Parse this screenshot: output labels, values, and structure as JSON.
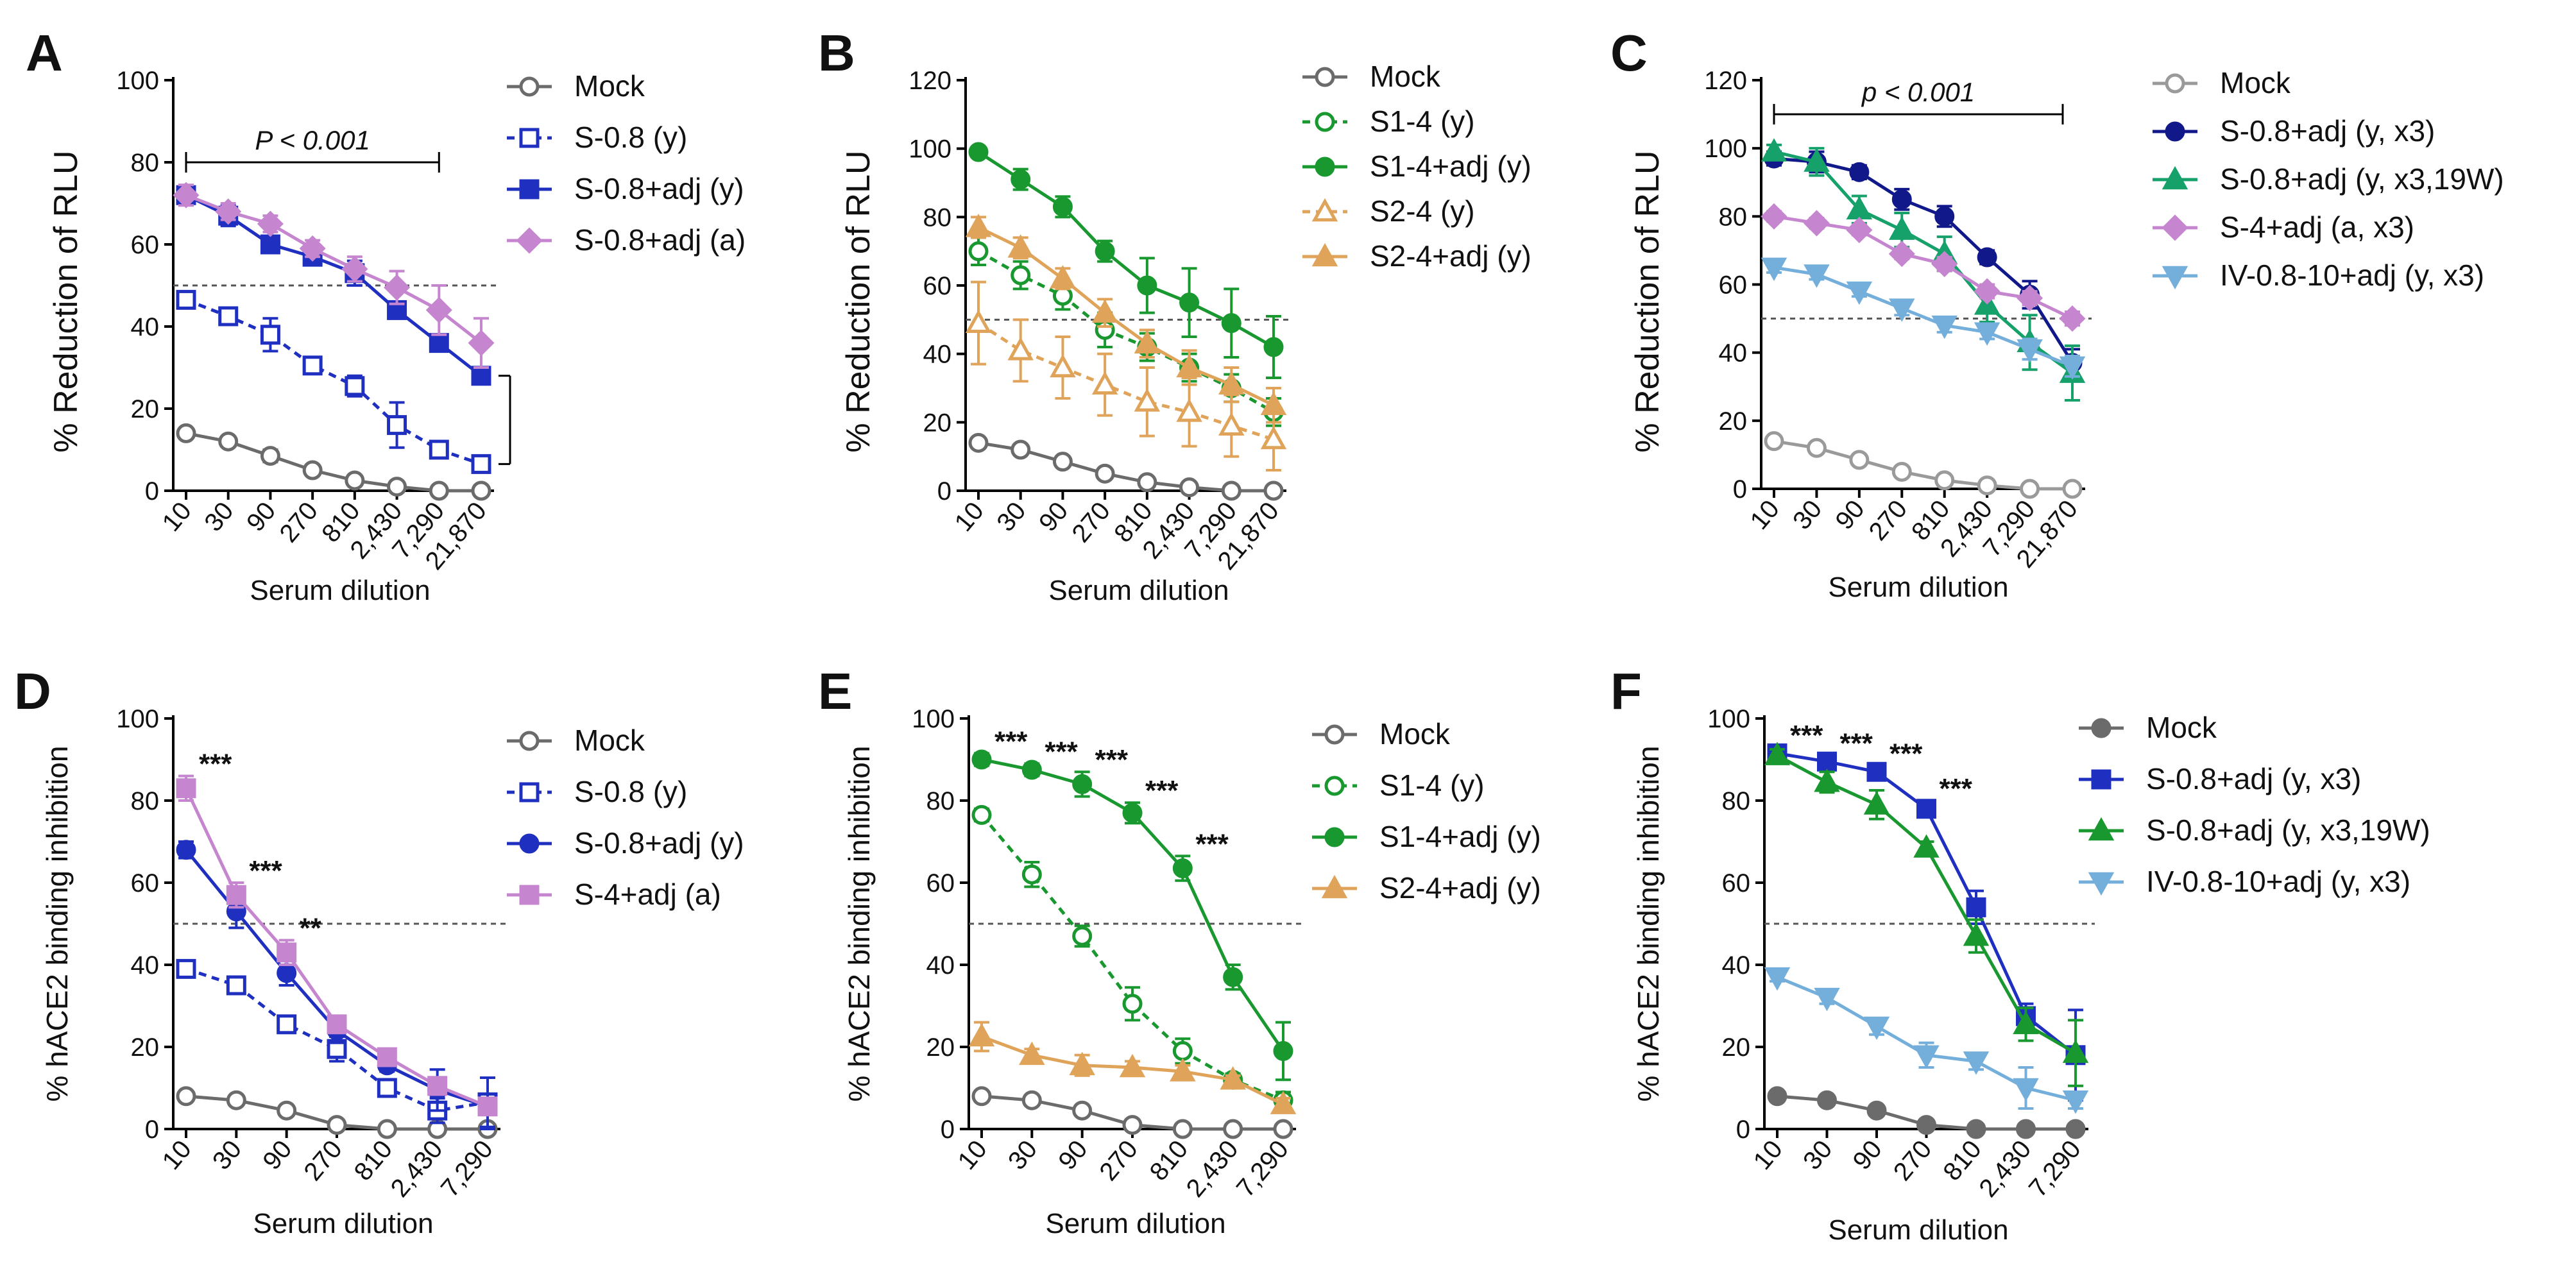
{
  "figure": {
    "title": ""
  },
  "colors": {
    "mock": "#6b6b6b",
    "mock_light": "#9a9a9a",
    "blue": "#1f2fbf",
    "navy": "#10188a",
    "purple": "#c586cf",
    "green": "#18982f",
    "teal": "#16a06a",
    "orange": "#e0a35a",
    "lightblue": "#74aedb"
  },
  "chart_data": [
    {
      "id": "A",
      "type": "line",
      "ylabel": "% Reduction of RLU",
      "xlabel": "Serum dilution",
      "categories": [
        "10",
        "30",
        "90",
        "270",
        "810",
        "2,430",
        "7,290",
        "21,870"
      ],
      "ylim": [
        0,
        100
      ],
      "yticks": [
        0,
        20,
        40,
        60,
        80,
        100
      ],
      "reference_line": 50,
      "legend_position": "right",
      "series": [
        {
          "name": "Mock",
          "values": [
            14,
            12,
            8.5,
            5,
            2.5,
            1,
            0,
            0
          ],
          "errors": [
            0.8,
            0.8,
            1.5,
            0.8,
            0.5,
            0.5,
            0.3,
            0.3
          ],
          "color": "#6b6b6b",
          "marker": "circle",
          "fill": "open",
          "dash": false
        },
        {
          "name": "S-0.8 (y)",
          "values": [
            46.5,
            42.5,
            38,
            30.5,
            25.5,
            16,
            10,
            6.5
          ],
          "errors": [
            2,
            1.5,
            4,
            2,
            2.5,
            5.5,
            2,
            1.5
          ],
          "color": "#1f2fbf",
          "marker": "square",
          "fill": "open",
          "dash": true
        },
        {
          "name": "S-0.8+adj (y)",
          "values": [
            72,
            67,
            60,
            57,
            53,
            44,
            36,
            28
          ],
          "errors": [
            2,
            2.5,
            2,
            2,
            3,
            2,
            2,
            1.5
          ],
          "color": "#1f2fbf",
          "marker": "square",
          "fill": "filled",
          "dash": false
        },
        {
          "name": "S-0.8+adj (a)",
          "values": [
            72,
            68,
            65,
            59,
            54,
            49.5,
            44,
            36
          ],
          "errors": [
            2.5,
            2,
            2,
            2,
            3,
            4,
            6,
            6
          ],
          "color": "#c586cf",
          "marker": "diamond",
          "fill": "filled",
          "dash": false
        }
      ],
      "annotations": [
        {
          "text": "P < 0.001",
          "kind": "bracket-top"
        },
        {
          "text": "",
          "kind": "bracket-right"
        }
      ]
    },
    {
      "id": "B",
      "type": "line",
      "ylabel": "% Reduction of RLU",
      "xlabel": "Serum dilution",
      "categories": [
        "10",
        "30",
        "90",
        "270",
        "810",
        "2,430",
        "7,290",
        "21,870"
      ],
      "ylim": [
        0,
        120
      ],
      "yticks": [
        0,
        20,
        40,
        60,
        80,
        100,
        120
      ],
      "reference_line": 50,
      "legend_position": "right",
      "series": [
        {
          "name": "Mock",
          "values": [
            14,
            12,
            8.5,
            5,
            2.5,
            1,
            0,
            0
          ],
          "errors": [
            0.8,
            0.8,
            1.5,
            0.8,
            0.5,
            0.5,
            0.3,
            0.3
          ],
          "color": "#6b6b6b",
          "marker": "circle",
          "fill": "open",
          "dash": false
        },
        {
          "name": "S1-4 (y)",
          "values": [
            70,
            63,
            57,
            47,
            42,
            36,
            30,
            23
          ],
          "errors": [
            4,
            4,
            4,
            5,
            4,
            4,
            4,
            4
          ],
          "color": "#18982f",
          "marker": "circle",
          "fill": "open",
          "dash": true
        },
        {
          "name": "S1-4+adj (y)",
          "values": [
            99,
            91,
            83,
            70,
            60,
            55,
            49,
            42
          ],
          "errors": [
            1,
            3,
            3,
            3,
            8,
            10,
            10,
            9
          ],
          "color": "#18982f",
          "marker": "circle",
          "fill": "filled",
          "dash": false
        },
        {
          "name": "S2-4 (y)",
          "values": [
            49,
            41,
            36,
            31,
            26,
            23,
            19,
            15
          ],
          "errors": [
            12,
            9,
            9,
            9,
            10,
            10,
            9,
            9
          ],
          "color": "#e0a35a",
          "marker": "triangle",
          "fill": "open",
          "dash": true
        },
        {
          "name": "S2-4+adj (y)",
          "values": [
            77,
            71,
            62,
            52,
            43,
            36,
            31,
            25
          ],
          "errors": [
            3,
            3,
            3,
            4,
            4,
            5,
            5,
            5
          ],
          "color": "#e0a35a",
          "marker": "triangle",
          "fill": "filled",
          "dash": false
        }
      ],
      "annotations": []
    },
    {
      "id": "C",
      "type": "line",
      "ylabel": "% Reduction of RLU",
      "xlabel": "Serum dilution",
      "categories": [
        "10",
        "30",
        "90",
        "270",
        "810",
        "2,430",
        "7,290",
        "21,870"
      ],
      "ylim": [
        0,
        120
      ],
      "yticks": [
        0,
        20,
        40,
        60,
        80,
        100,
        120
      ],
      "reference_line": 50,
      "legend_position": "right",
      "series": [
        {
          "name": "Mock",
          "values": [
            14,
            12,
            8.5,
            5,
            2.5,
            1,
            0,
            0
          ],
          "errors": [
            0.8,
            0.8,
            1.5,
            0.8,
            0.5,
            0.5,
            0.3,
            0.3
          ],
          "color": "#9a9a9a",
          "marker": "circle",
          "fill": "open",
          "dash": false
        },
        {
          "name": "S-0.8+adj (y, x3)",
          "values": [
            97,
            96,
            93,
            85,
            80,
            68,
            57,
            37
          ],
          "errors": [
            2,
            3,
            2,
            3,
            3,
            2,
            4,
            4
          ],
          "color": "#10188a",
          "marker": "circle",
          "fill": "filled",
          "dash": false
        },
        {
          "name": "S-0.8+adj (y, x3,19W)",
          "values": [
            99,
            96,
            82,
            76,
            69,
            54,
            43,
            34
          ],
          "errors": [
            2,
            4,
            4,
            5,
            5,
            5,
            8,
            8
          ],
          "color": "#16a06a",
          "marker": "triangle",
          "fill": "filled",
          "dash": false
        },
        {
          "name": "S-4+adj (a, x3)",
          "values": [
            80,
            78,
            76,
            69,
            66,
            58,
            56,
            50
          ],
          "errors": [
            1.5,
            1.5,
            1.5,
            1.5,
            2,
            2,
            2,
            2
          ],
          "color": "#c586cf",
          "marker": "diamond",
          "fill": "filled",
          "dash": false
        },
        {
          "name": "IV-0.8-10+adj (y, x3)",
          "values": [
            65,
            63,
            58,
            53,
            48,
            46,
            41,
            36
          ],
          "errors": [
            1.5,
            1.5,
            1.5,
            2,
            2,
            2,
            3,
            3
          ],
          "color": "#74aedb",
          "marker": "triangle-down",
          "fill": "filled",
          "dash": false
        }
      ],
      "annotations": [
        {
          "text": "p < 0.001",
          "kind": "bracket-top"
        }
      ]
    },
    {
      "id": "D",
      "type": "line",
      "ylabel": "% hACE2 binding inhibition",
      "xlabel": "Serum dilution",
      "categories": [
        "10",
        "30",
        "90",
        "270",
        "810",
        "2,430",
        "7,290"
      ],
      "ylim": [
        0,
        100
      ],
      "yticks": [
        0,
        20,
        40,
        60,
        80,
        100
      ],
      "reference_line": 50,
      "legend_position": "right",
      "series": [
        {
          "name": "Mock",
          "values": [
            8,
            7,
            4.5,
            1,
            0,
            0,
            0
          ],
          "errors": [
            1,
            0.8,
            0.8,
            0.5,
            0.3,
            0.3,
            0.3
          ],
          "color": "#6b6b6b",
          "marker": "circle",
          "fill": "open",
          "dash": false
        },
        {
          "name": "S-0.8 (y)",
          "values": [
            39,
            35,
            25.5,
            19.5,
            10,
            4.5,
            6.5
          ],
          "errors": [
            1.5,
            1.5,
            1.5,
            3,
            1.5,
            3,
            6
          ],
          "color": "#1f2fbf",
          "marker": "square",
          "fill": "open",
          "dash": true
        },
        {
          "name": "S-0.8+adj (y)",
          "values": [
            68,
            53,
            38,
            24,
            15.5,
            9.5,
            5.5
          ],
          "errors": [
            2,
            4,
            3,
            3,
            1.5,
            5,
            7
          ],
          "color": "#1f2fbf",
          "marker": "circle",
          "fill": "filled",
          "dash": false
        },
        {
          "name": "S-4+adj (a)",
          "values": [
            83,
            57,
            43,
            25.5,
            17.5,
            10.5,
            5.5
          ],
          "errors": [
            3,
            3,
            3,
            1.5,
            1.5,
            1.5,
            1.5
          ],
          "color": "#c586cf",
          "marker": "square",
          "fill": "filled",
          "dash": false
        }
      ],
      "annotations": [
        {
          "text": "***",
          "index": 0
        },
        {
          "text": "***",
          "index": 1
        },
        {
          "text": "**",
          "index": 2
        }
      ]
    },
    {
      "id": "E",
      "type": "line",
      "ylabel": "% hACE2 binding inhibition",
      "xlabel": "Serum dilution",
      "categories": [
        "10",
        "30",
        "90",
        "270",
        "810",
        "2,430",
        "7,290"
      ],
      "ylim": [
        0,
        100
      ],
      "yticks": [
        0,
        20,
        40,
        60,
        80,
        100
      ],
      "reference_line": 50,
      "legend_position": "right",
      "series": [
        {
          "name": "Mock",
          "values": [
            8,
            7,
            4.5,
            1,
            0,
            0,
            0
          ],
          "errors": [
            1,
            0.8,
            0.8,
            0.5,
            0.3,
            0.3,
            0.3
          ],
          "color": "#6b6b6b",
          "marker": "circle",
          "fill": "open",
          "dash": false
        },
        {
          "name": "S1-4 (y)",
          "values": [
            76.5,
            62,
            47,
            30.5,
            19,
            12,
            7
          ],
          "errors": [
            1.5,
            3,
            2.5,
            4,
            3,
            1.5,
            2
          ],
          "color": "#18982f",
          "marker": "circle",
          "fill": "open",
          "dash": true
        },
        {
          "name": "S1-4+adj (y)",
          "values": [
            90,
            87.5,
            84,
            77,
            63.5,
            37,
            19
          ],
          "errors": [
            1.5,
            1.5,
            3,
            2.5,
            3,
            3,
            7
          ],
          "color": "#18982f",
          "marker": "circle",
          "fill": "filled",
          "dash": false
        },
        {
          "name": "S2-4+adj (y)",
          "values": [
            22.5,
            18,
            15.5,
            15,
            14,
            12,
            6
          ],
          "errors": [
            3.5,
            1.5,
            2.5,
            1.5,
            1.5,
            1,
            1.5
          ],
          "color": "#e0a35a",
          "marker": "triangle",
          "fill": "filled",
          "dash": false
        }
      ],
      "annotations": [
        {
          "text": "***",
          "index": 0
        },
        {
          "text": "***",
          "index": 1
        },
        {
          "text": "***",
          "index": 2
        },
        {
          "text": "***",
          "index": 3
        },
        {
          "text": "***",
          "index": 4
        }
      ]
    },
    {
      "id": "F",
      "type": "line",
      "ylabel": "% hACE2 binding inhibition",
      "xlabel": "Serum dilution",
      "categories": [
        "10",
        "30",
        "90",
        "270",
        "810",
        "2,430",
        "7,290"
      ],
      "ylim": [
        0,
        100
      ],
      "yticks": [
        0,
        20,
        40,
        60,
        80,
        100
      ],
      "reference_line": 50,
      "legend_position": "right",
      "series": [
        {
          "name": "Mock",
          "values": [
            8,
            7,
            4.5,
            1,
            0,
            0,
            0
          ],
          "errors": [
            1,
            0.8,
            0.8,
            0.5,
            0.3,
            0.3,
            0.3
          ],
          "color": "#6b6b6b",
          "marker": "circle",
          "fill": "filled",
          "dash": false
        },
        {
          "name": "S-0.8+adj (y, x3)",
          "values": [
            91.5,
            89.5,
            87,
            78,
            54,
            27.5,
            18
          ],
          "errors": [
            1.5,
            1.5,
            1.5,
            2,
            4,
            3,
            11
          ],
          "color": "#1f2fbf",
          "marker": "square",
          "fill": "filled",
          "dash": false
        },
        {
          "name": "S-0.8+adj (y, x3,19W)",
          "values": [
            91,
            84.5,
            79,
            68.5,
            47,
            25.5,
            18.5
          ],
          "errors": [
            1.5,
            2.5,
            3.5,
            1.5,
            4,
            4,
            8
          ],
          "color": "#18982f",
          "marker": "triangle",
          "fill": "filled",
          "dash": false
        },
        {
          "name": "IV-0.8-10+adj (y, x3)",
          "values": [
            37,
            32,
            25,
            18,
            16.5,
            10,
            7
          ],
          "errors": [
            1,
            1.5,
            2,
            3,
            2,
            5,
            2
          ],
          "color": "#74aedb",
          "marker": "triangle-down",
          "fill": "filled",
          "dash": false
        }
      ],
      "annotations": [
        {
          "text": "***",
          "index": 0
        },
        {
          "text": "***",
          "index": 1
        },
        {
          "text": "***",
          "index": 2
        },
        {
          "text": "***",
          "index": 3
        }
      ]
    }
  ]
}
